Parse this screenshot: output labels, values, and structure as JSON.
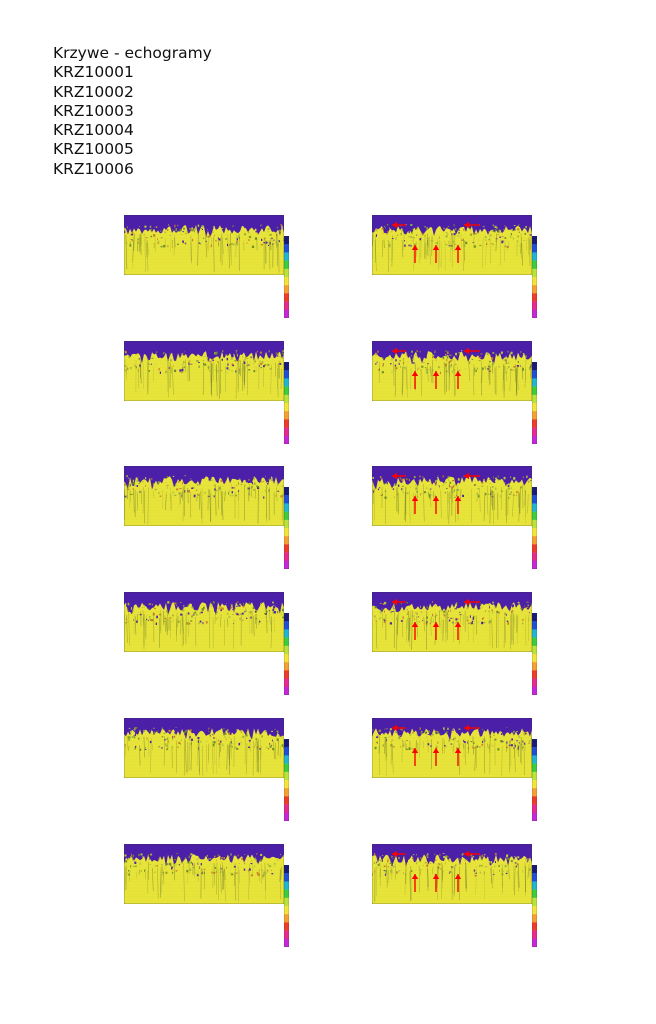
{
  "heading": {
    "title": "Krzywe - echogramy",
    "ids": [
      "KRZ10001",
      "KRZ10002",
      "KRZ10003",
      "KRZ10004",
      "KRZ10005",
      "KRZ10006"
    ]
  },
  "panels_left": [
    1,
    2,
    3,
    4,
    5,
    6
  ],
  "panels_right": [
    1,
    2,
    3,
    4,
    5,
    6
  ],
  "colors": {
    "background": "#ffffff",
    "surface_band": "#4b1fa8",
    "echo_field": "#e8e43a",
    "arrow": "#ff0000"
  },
  "colorbar_scale": [
    "#1a1a7a",
    "#1f4fd6",
    "#20b5d0",
    "#3ccc3c",
    "#b9e23a",
    "#f2e43a",
    "#f5a035",
    "#ee3b2c",
    "#e62a8f",
    "#c526d8"
  ]
}
